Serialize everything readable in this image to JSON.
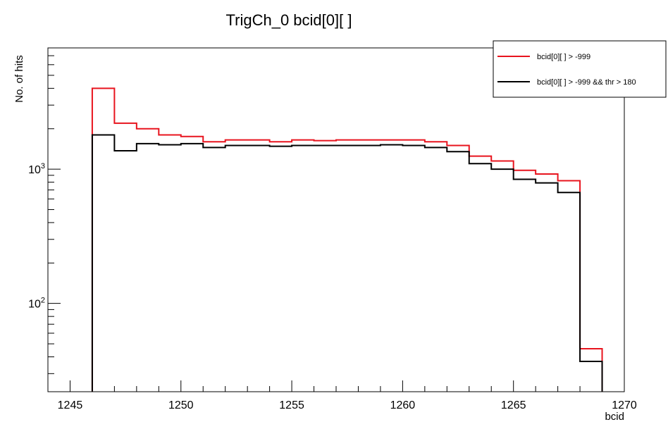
{
  "chart_data": {
    "type": "histogram",
    "title": "TrigCh_0 bcid[0][ ]",
    "xlabel": "bcid",
    "ylabel": "No. of hits",
    "xlim": [
      1244,
      1270
    ],
    "ylim": [
      22,
      8000
    ],
    "yscale": "log",
    "grid": false,
    "legend_position": "top-right",
    "x_ticks": [
      1245,
      1250,
      1255,
      1260,
      1265,
      1270
    ],
    "y_ticks": [
      {
        "base": "10",
        "exp": "2",
        "value": 100
      },
      {
        "base": "10",
        "exp": "3",
        "value": 1000
      }
    ],
    "bin_edges": [
      1246,
      1247,
      1248,
      1249,
      1250,
      1251,
      1252,
      1253,
      1254,
      1255,
      1256,
      1257,
      1258,
      1259,
      1260,
      1261,
      1262,
      1263,
      1264,
      1265,
      1266,
      1267,
      1268,
      1269
    ],
    "series": [
      {
        "name": "bcid[0][ ] > -999",
        "color": "#e8141e",
        "values": [
          4000,
          2200,
          2000,
          1800,
          1750,
          1600,
          1650,
          1650,
          1600,
          1650,
          1630,
          1650,
          1650,
          1650,
          1650,
          1600,
          1500,
          1250,
          1150,
          980,
          920,
          820,
          46
        ]
      },
      {
        "name": "bcid[0][ ] > -999 && thr > 180",
        "color": "#000000",
        "values": [
          1800,
          1370,
          1550,
          1520,
          1550,
          1450,
          1500,
          1500,
          1480,
          1500,
          1500,
          1500,
          1500,
          1520,
          1500,
          1450,
          1350,
          1100,
          1000,
          840,
          790,
          670,
          37
        ]
      }
    ]
  }
}
